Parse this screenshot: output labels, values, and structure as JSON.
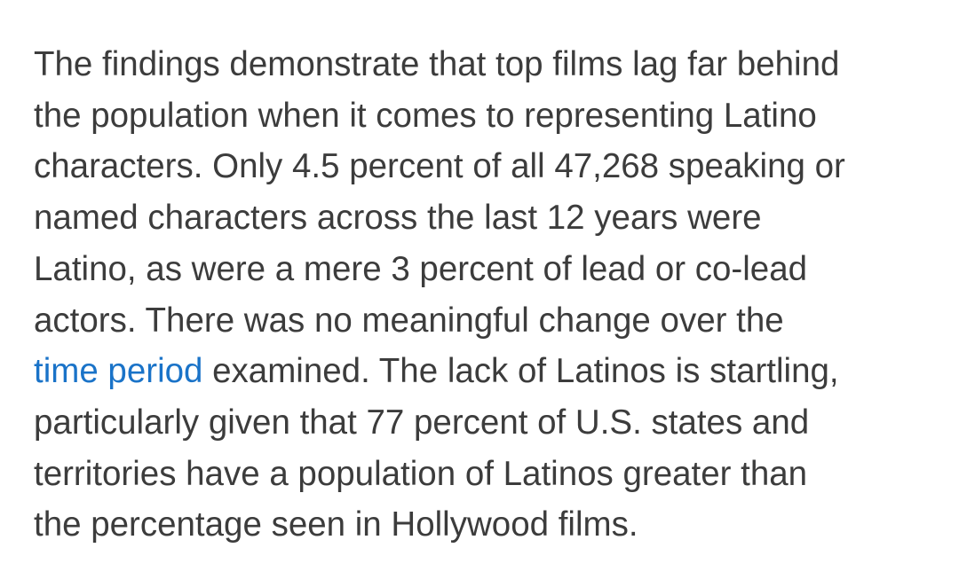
{
  "article": {
    "paragraph": {
      "lines": [
        "The findings demonstrate that top films lag far behind",
        "the population when it comes to representing Latino",
        "characters. Only 4.5 percent of all 47,268 speaking or",
        "named characters across the last 12 years were",
        "Latino, as were a mere 3 percent of lead or co-lead",
        "actors. There was no meaningful change over the",
        {
          "link": "time period",
          "after": " examined. The lack of Latinos is startling,"
        },
        "particularly given that 77 percent of U.S. states and",
        "territories have a population of Latinos greater than",
        "the percentage seen in Hollywood films."
      ]
    }
  },
  "colors": {
    "text": "#3c3c3c",
    "link": "#1a73c8",
    "background": "#ffffff"
  }
}
